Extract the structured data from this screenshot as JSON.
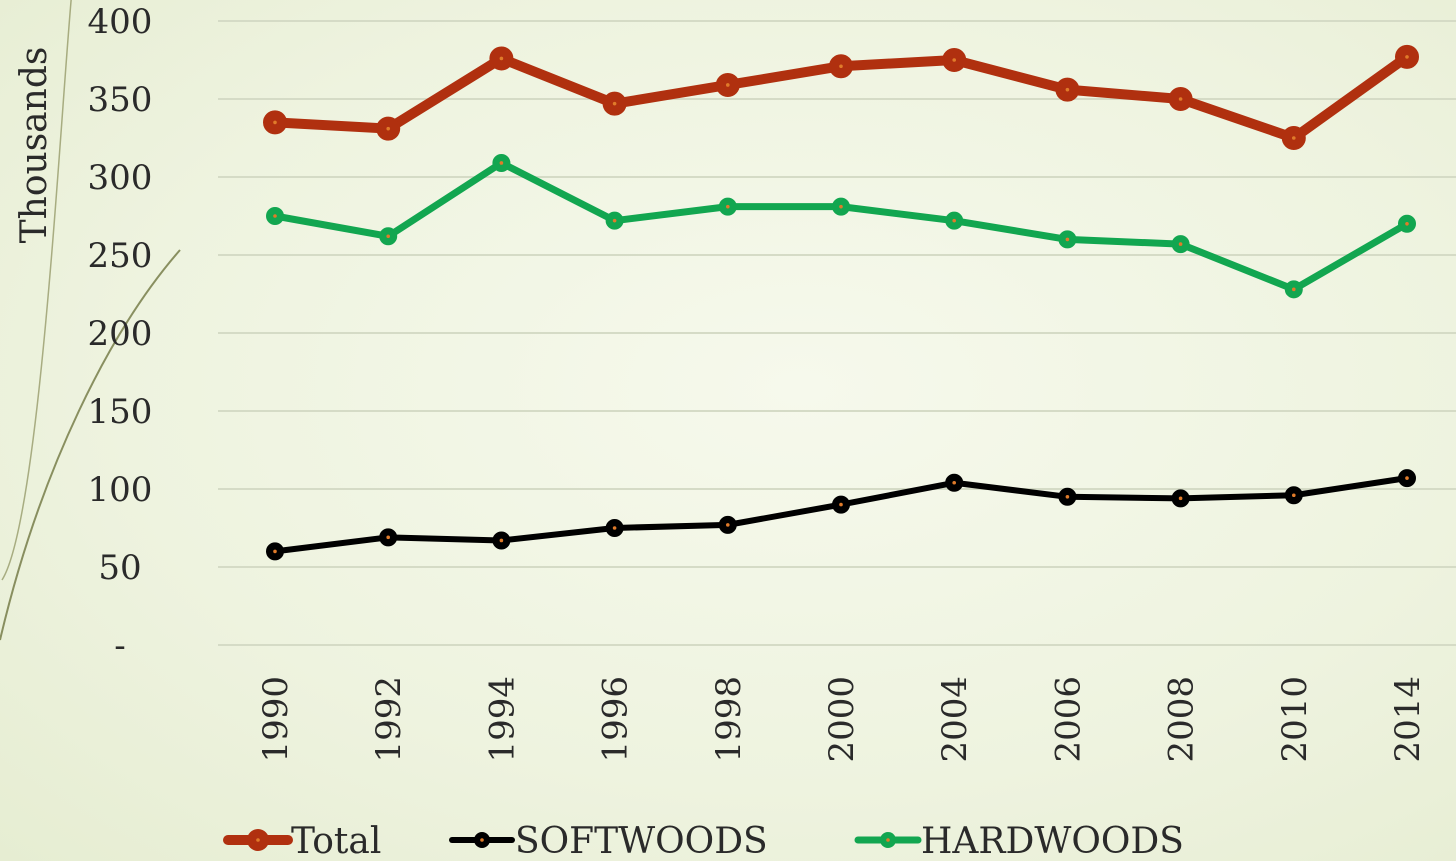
{
  "chart_data": {
    "type": "line",
    "title": "",
    "xlabel": "",
    "ylabel": "Thousands",
    "ylim": [
      0,
      400
    ],
    "yticks": [
      0,
      50,
      100,
      150,
      200,
      250,
      300,
      350,
      400
    ],
    "ytick_labels": [
      "-",
      "50",
      "100",
      "150",
      "200",
      "250",
      "300",
      "350",
      "400"
    ],
    "categories": [
      "1990",
      "1992",
      "1994",
      "1996",
      "1998",
      "2000",
      "2004",
      "2006",
      "2008",
      "2010",
      "2014"
    ],
    "grid": "horizontal",
    "legend_position": "bottom",
    "series": [
      {
        "name": "Total",
        "color": "#b0300f",
        "values": [
          335,
          331,
          376,
          347,
          359,
          371,
          375,
          356,
          350,
          325,
          377
        ]
      },
      {
        "name": "SOFTWOODS",
        "color": "#000000",
        "values": [
          60,
          69,
          67,
          75,
          77,
          90,
          104,
          95,
          94,
          96,
          107
        ]
      },
      {
        "name": "HARDWOODS",
        "color": "#12a650",
        "values": [
          275,
          262,
          309,
          272,
          281,
          281,
          272,
          260,
          257,
          228,
          270
        ]
      }
    ]
  }
}
